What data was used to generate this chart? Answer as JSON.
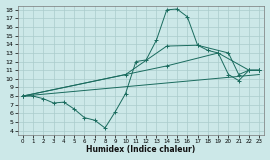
{
  "bg_color": "#cce8e8",
  "grid_color": "#aacccc",
  "line_color": "#1a6b5e",
  "xlabel": "Humidex (Indice chaleur)",
  "xlim": [
    -0.5,
    23.5
  ],
  "ylim": [
    3.5,
    18.5
  ],
  "xticks": [
    0,
    1,
    2,
    3,
    4,
    5,
    6,
    7,
    8,
    9,
    10,
    11,
    12,
    13,
    14,
    15,
    16,
    17,
    18,
    19,
    20,
    21,
    22,
    23
  ],
  "yticks": [
    4,
    5,
    6,
    7,
    8,
    9,
    10,
    11,
    12,
    13,
    14,
    15,
    16,
    17,
    18
  ],
  "line1_x": [
    0,
    1,
    2,
    3,
    4,
    5,
    6,
    7,
    8,
    9,
    10,
    11,
    12,
    13,
    14,
    15,
    16,
    17,
    18,
    19,
    20,
    21,
    22,
    23
  ],
  "line1_y": [
    8.0,
    8.0,
    7.7,
    7.2,
    7.3,
    6.5,
    5.5,
    5.2,
    4.3,
    6.2,
    8.3,
    12.0,
    12.2,
    14.5,
    18.0,
    18.1,
    17.2,
    13.9,
    13.3,
    13.0,
    10.5,
    9.8,
    11.0,
    11.0
  ],
  "line2_x": [
    0,
    10,
    14,
    17,
    20,
    21,
    22,
    23
  ],
  "line2_y": [
    8.0,
    10.5,
    13.8,
    13.9,
    13.0,
    10.5,
    11.0,
    11.0
  ],
  "line3_x": [
    0,
    14,
    19,
    22,
    23
  ],
  "line3_y": [
    8.0,
    11.5,
    13.0,
    11.0,
    11.0
  ],
  "line4_x": [
    0,
    23
  ],
  "line4_y": [
    8.0,
    10.5
  ]
}
